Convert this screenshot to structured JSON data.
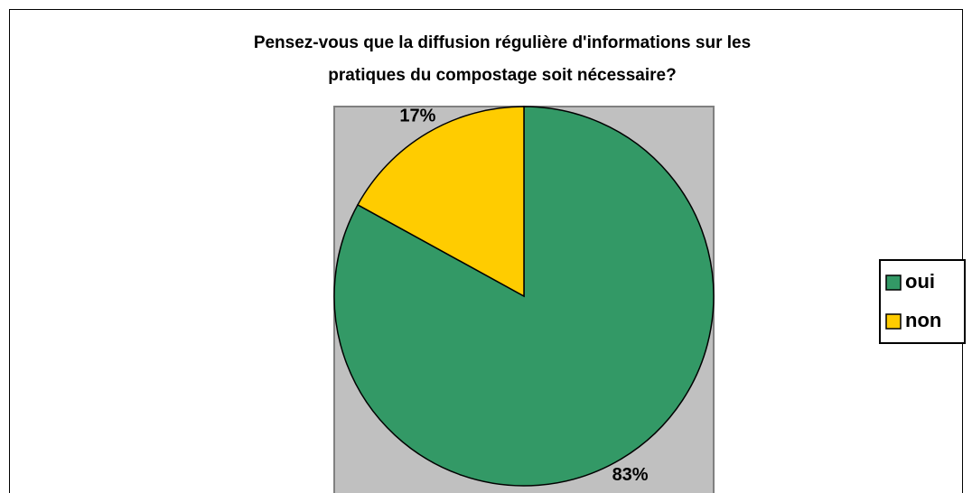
{
  "chart_data": {
    "type": "pie",
    "title": [
      "Pensez-vous que la diffusion régulière d'informations sur les",
      "pratiques du compostage soit nécessaire?"
    ],
    "categories": [
      "oui",
      "non"
    ],
    "values": [
      83,
      17
    ],
    "value_labels": [
      "83%",
      "17%"
    ],
    "colors": [
      "#339966",
      "#ffcc00"
    ],
    "legend": "right"
  }
}
